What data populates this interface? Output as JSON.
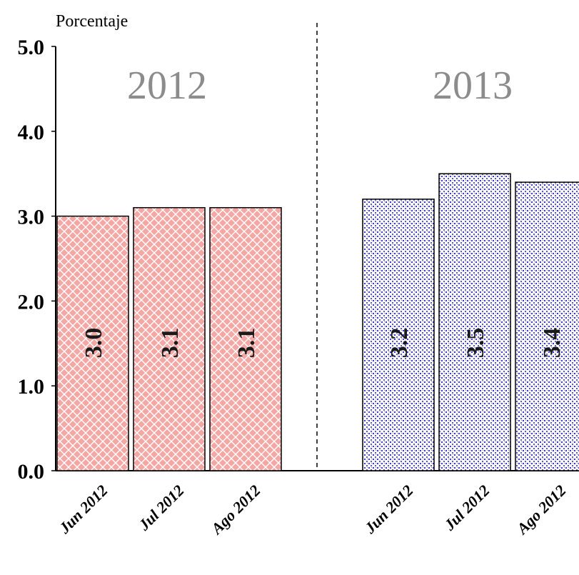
{
  "chart_data": {
    "type": "bar",
    "ylabel": "Porcentaje",
    "ylim": [
      0,
      5
    ],
    "yticks": [
      "0.0",
      "1.0",
      "2.0",
      "3.0",
      "4.0",
      "5.0"
    ],
    "groups": [
      {
        "name": "2012",
        "color": "#f08080",
        "categories": [
          "Jun 2012",
          "Jul 2012",
          "Ago 2012"
        ],
        "values": [
          3.0,
          3.1,
          3.1
        ],
        "labels": [
          "3.0",
          "3.1",
          "3.1"
        ]
      },
      {
        "name": "2013",
        "color": "#3a3ad0",
        "categories": [
          "Jun 2012",
          "Jul 2012",
          "Ago 2012"
        ],
        "values": [
          3.2,
          3.5,
          3.4
        ],
        "labels": [
          "3.2",
          "3.5",
          "3.4"
        ]
      }
    ]
  }
}
